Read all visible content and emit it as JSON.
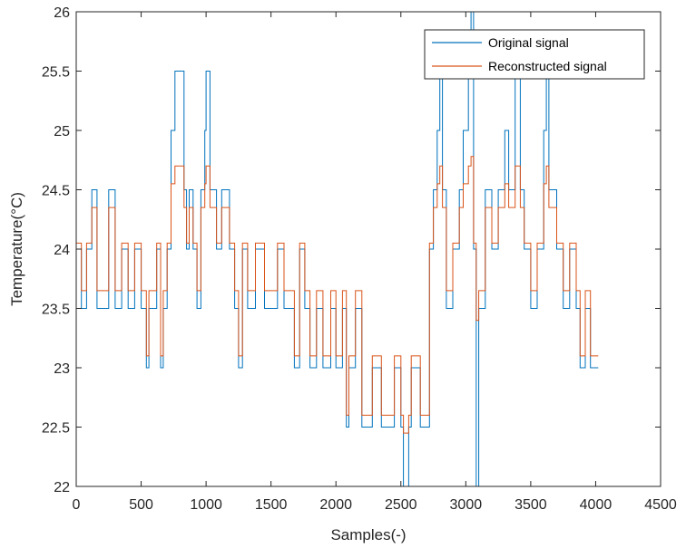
{
  "chart_data": {
    "type": "line",
    "title": "",
    "xlabel": "Samples(-)",
    "ylabel": "Temperature(°C)",
    "xlim": [
      0,
      4500
    ],
    "ylim": [
      22,
      26
    ],
    "xticks": [
      "0",
      "500",
      "1000",
      "1500",
      "2000",
      "2500",
      "3000",
      "3500",
      "4000",
      "4500"
    ],
    "yticks": [
      "22",
      "22.5",
      "23",
      "23.5",
      "24",
      "24.5",
      "25",
      "25.5",
      "26"
    ],
    "grid": false,
    "legend_position": "top-right",
    "colors": {
      "original": "#0072BD",
      "reconstructed": "#D95319"
    },
    "series": [
      {
        "name": "Original signal",
        "step": true,
        "points": [
          [
            0,
            24.0
          ],
          [
            40,
            23.5
          ],
          [
            80,
            24.0
          ],
          [
            120,
            24.5
          ],
          [
            160,
            23.5
          ],
          [
            250,
            24.5
          ],
          [
            300,
            23.5
          ],
          [
            350,
            24.0
          ],
          [
            400,
            23.5
          ],
          [
            450,
            24.0
          ],
          [
            500,
            23.5
          ],
          [
            540,
            23.0
          ],
          [
            560,
            23.5
          ],
          [
            620,
            24.0
          ],
          [
            650,
            23.0
          ],
          [
            670,
            23.5
          ],
          [
            700,
            24.0
          ],
          [
            730,
            25.0
          ],
          [
            760,
            25.5
          ],
          [
            830,
            24.5
          ],
          [
            850,
            24.0
          ],
          [
            870,
            24.5
          ],
          [
            900,
            24.0
          ],
          [
            930,
            23.5
          ],
          [
            960,
            24.5
          ],
          [
            990,
            25.0
          ],
          [
            1000,
            25.5
          ],
          [
            1030,
            24.5
          ],
          [
            1080,
            24.0
          ],
          [
            1120,
            24.5
          ],
          [
            1180,
            24.0
          ],
          [
            1220,
            23.5
          ],
          [
            1250,
            23.0
          ],
          [
            1280,
            24.0
          ],
          [
            1320,
            23.5
          ],
          [
            1380,
            24.0
          ],
          [
            1450,
            23.5
          ],
          [
            1550,
            24.0
          ],
          [
            1600,
            23.5
          ],
          [
            1680,
            23.0
          ],
          [
            1720,
            24.0
          ],
          [
            1760,
            23.5
          ],
          [
            1800,
            23.0
          ],
          [
            1850,
            23.5
          ],
          [
            1900,
            23.0
          ],
          [
            1960,
            23.5
          ],
          [
            2000,
            23.0
          ],
          [
            2050,
            23.5
          ],
          [
            2080,
            22.5
          ],
          [
            2100,
            23.0
          ],
          [
            2150,
            23.5
          ],
          [
            2200,
            22.5
          ],
          [
            2280,
            23.0
          ],
          [
            2350,
            22.5
          ],
          [
            2450,
            23.0
          ],
          [
            2500,
            22.5
          ],
          [
            2520,
            22.0
          ],
          [
            2560,
            22.5
          ],
          [
            2580,
            23.0
          ],
          [
            2650,
            22.5
          ],
          [
            2720,
            24.0
          ],
          [
            2750,
            24.5
          ],
          [
            2780,
            25.0
          ],
          [
            2800,
            25.5
          ],
          [
            2820,
            24.5
          ],
          [
            2850,
            23.5
          ],
          [
            2900,
            24.0
          ],
          [
            2950,
            24.5
          ],
          [
            2980,
            25.0
          ],
          [
            3020,
            25.5
          ],
          [
            3040,
            26.0
          ],
          [
            3060,
            24.0
          ],
          [
            3080,
            22.0
          ],
          [
            3100,
            23.5
          ],
          [
            3150,
            24.5
          ],
          [
            3200,
            24.0
          ],
          [
            3250,
            24.5
          ],
          [
            3300,
            25.0
          ],
          [
            3330,
            24.5
          ],
          [
            3380,
            25.5
          ],
          [
            3420,
            24.5
          ],
          [
            3450,
            24.0
          ],
          [
            3500,
            23.5
          ],
          [
            3550,
            24.0
          ],
          [
            3600,
            25.0
          ],
          [
            3620,
            25.5
          ],
          [
            3640,
            24.5
          ],
          [
            3700,
            24.0
          ],
          [
            3750,
            23.5
          ],
          [
            3800,
            24.0
          ],
          [
            3850,
            23.5
          ],
          [
            3880,
            23.0
          ],
          [
            3920,
            23.5
          ],
          [
            3960,
            23.0
          ],
          [
            4020,
            23.0
          ]
        ]
      },
      {
        "name": "Reconstructed signal",
        "step": true,
        "points": [
          [
            0,
            24.05
          ],
          [
            40,
            23.65
          ],
          [
            80,
            24.05
          ],
          [
            120,
            24.35
          ],
          [
            160,
            23.65
          ],
          [
            250,
            24.35
          ],
          [
            300,
            23.65
          ],
          [
            350,
            24.05
          ],
          [
            400,
            23.65
          ],
          [
            450,
            24.05
          ],
          [
            500,
            23.65
          ],
          [
            540,
            23.1
          ],
          [
            560,
            23.65
          ],
          [
            620,
            24.05
          ],
          [
            650,
            23.1
          ],
          [
            670,
            23.65
          ],
          [
            700,
            24.05
          ],
          [
            730,
            24.55
          ],
          [
            760,
            24.7
          ],
          [
            830,
            24.35
          ],
          [
            850,
            24.05
          ],
          [
            870,
            24.35
          ],
          [
            900,
            24.05
          ],
          [
            930,
            23.65
          ],
          [
            960,
            24.35
          ],
          [
            990,
            24.55
          ],
          [
            1000,
            24.7
          ],
          [
            1030,
            24.35
          ],
          [
            1080,
            24.05
          ],
          [
            1120,
            24.35
          ],
          [
            1180,
            24.05
          ],
          [
            1220,
            23.65
          ],
          [
            1250,
            23.1
          ],
          [
            1280,
            24.05
          ],
          [
            1320,
            23.65
          ],
          [
            1380,
            24.05
          ],
          [
            1450,
            23.65
          ],
          [
            1550,
            24.05
          ],
          [
            1600,
            23.65
          ],
          [
            1680,
            23.1
          ],
          [
            1720,
            24.05
          ],
          [
            1760,
            23.65
          ],
          [
            1800,
            23.1
          ],
          [
            1850,
            23.65
          ],
          [
            1900,
            23.1
          ],
          [
            1960,
            23.65
          ],
          [
            2000,
            23.1
          ],
          [
            2050,
            23.65
          ],
          [
            2080,
            22.6
          ],
          [
            2100,
            23.1
          ],
          [
            2150,
            23.65
          ],
          [
            2200,
            22.6
          ],
          [
            2280,
            23.1
          ],
          [
            2350,
            22.6
          ],
          [
            2450,
            23.1
          ],
          [
            2500,
            22.6
          ],
          [
            2520,
            22.45
          ],
          [
            2560,
            22.6
          ],
          [
            2580,
            23.1
          ],
          [
            2650,
            22.6
          ],
          [
            2720,
            24.05
          ],
          [
            2750,
            24.35
          ],
          [
            2780,
            24.55
          ],
          [
            2800,
            24.7
          ],
          [
            2820,
            24.35
          ],
          [
            2850,
            23.65
          ],
          [
            2900,
            24.05
          ],
          [
            2950,
            24.35
          ],
          [
            2980,
            24.55
          ],
          [
            3020,
            24.7
          ],
          [
            3040,
            24.78
          ],
          [
            3060,
            24.05
          ],
          [
            3080,
            23.4
          ],
          [
            3100,
            23.65
          ],
          [
            3150,
            24.35
          ],
          [
            3200,
            24.05
          ],
          [
            3250,
            24.35
          ],
          [
            3300,
            24.55
          ],
          [
            3330,
            24.35
          ],
          [
            3380,
            24.7
          ],
          [
            3420,
            24.35
          ],
          [
            3450,
            24.05
          ],
          [
            3500,
            23.65
          ],
          [
            3550,
            24.05
          ],
          [
            3600,
            24.55
          ],
          [
            3620,
            24.7
          ],
          [
            3640,
            24.35
          ],
          [
            3700,
            24.05
          ],
          [
            3750,
            23.65
          ],
          [
            3800,
            24.05
          ],
          [
            3850,
            23.65
          ],
          [
            3880,
            23.1
          ],
          [
            3920,
            23.65
          ],
          [
            3960,
            23.1
          ],
          [
            4020,
            23.1
          ]
        ]
      }
    ]
  }
}
